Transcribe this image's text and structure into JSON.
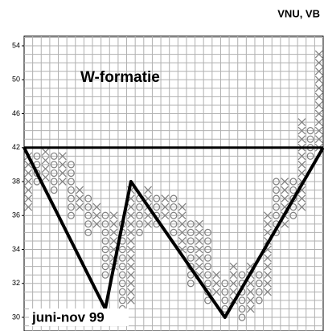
{
  "chart_data": {
    "type": "point-and-figure",
    "title": "VNU, VB",
    "annotations": [
      "W-formatie",
      "juni-nov 99"
    ],
    "ylim": [
      29.2,
      55
    ],
    "yticks": [
      54,
      50,
      46,
      42,
      38,
      36,
      34,
      32,
      30
    ],
    "color": "#808080",
    "line_color": "#000000",
    "grid": true,
    "columns": [
      {
        "type": "X",
        "low": 36.5,
        "high": 41
      },
      {
        "type": "O",
        "low": 38,
        "high": 41
      },
      {
        "type": "X",
        "low": 38.5,
        "high": 42
      },
      {
        "type": "O",
        "low": 37.5,
        "high": 41
      },
      {
        "type": "X",
        "low": 38,
        "high": 41
      },
      {
        "type": "O",
        "low": 36,
        "high": 40
      },
      {
        "type": "X",
        "low": 36.5,
        "high": 37.5
      },
      {
        "type": "O",
        "low": 35,
        "high": 37
      },
      {
        "type": "X",
        "low": 35.5,
        "high": 36.5
      },
      {
        "type": "O",
        "low": 32.5,
        "high": 36
      },
      {
        "type": "X",
        "low": 33,
        "high": 36
      },
      {
        "type": "O",
        "low": 30.5,
        "high": 35.5
      },
      {
        "type": "X",
        "low": 31,
        "high": 37.5
      },
      {
        "type": "O",
        "low": 35,
        "high": 37
      },
      {
        "type": "X",
        "low": 35.5,
        "high": 37.5
      },
      {
        "type": "O",
        "low": 35.5,
        "high": 37
      },
      {
        "type": "X",
        "low": 36,
        "high": 37
      },
      {
        "type": "O",
        "low": 35,
        "high": 37
      },
      {
        "type": "X",
        "low": 34,
        "high": 36.5
      },
      {
        "type": "O",
        "low": 32,
        "high": 35.5
      },
      {
        "type": "X",
        "low": 32.5,
        "high": 35.5
      },
      {
        "type": "O",
        "low": 31,
        "high": 35
      },
      {
        "type": "X",
        "low": 31.5,
        "high": 32.5
      },
      {
        "type": "O",
        "low": 30.5,
        "high": 32
      },
      {
        "type": "X",
        "low": 31,
        "high": 33
      },
      {
        "type": "O",
        "low": 30,
        "high": 32.5
      },
      {
        "type": "X",
        "low": 30.5,
        "high": 33
      },
      {
        "type": "O",
        "low": 31,
        "high": 32.5
      },
      {
        "type": "X",
        "low": 31.5,
        "high": 36
      },
      {
        "type": "O",
        "low": 35,
        "high": 38
      },
      {
        "type": "X",
        "low": 35.5,
        "high": 38.5
      },
      {
        "type": "O",
        "low": 36,
        "high": 38
      },
      {
        "type": "X",
        "low": 36.5,
        "high": 45
      },
      {
        "type": "O",
        "low": 41,
        "high": 44
      },
      {
        "type": "X",
        "low": 42,
        "high": 53
      }
    ],
    "trendline": {
      "x": [
        -0.5,
        9,
        12,
        23,
        34.5
      ],
      "values": [
        42,
        30.5,
        38,
        30,
        42
      ]
    },
    "resistance": 42
  }
}
